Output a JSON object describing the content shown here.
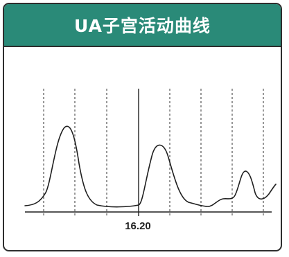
{
  "header": {
    "title": "UA子宫活动曲线"
  },
  "colors": {
    "header_bg": "#2a8a78",
    "title_text": "#ffffff",
    "curve": "#1f1f1f",
    "border": "#2e2e2e"
  },
  "chart": {
    "time_marker_label": "16.20"
  }
}
